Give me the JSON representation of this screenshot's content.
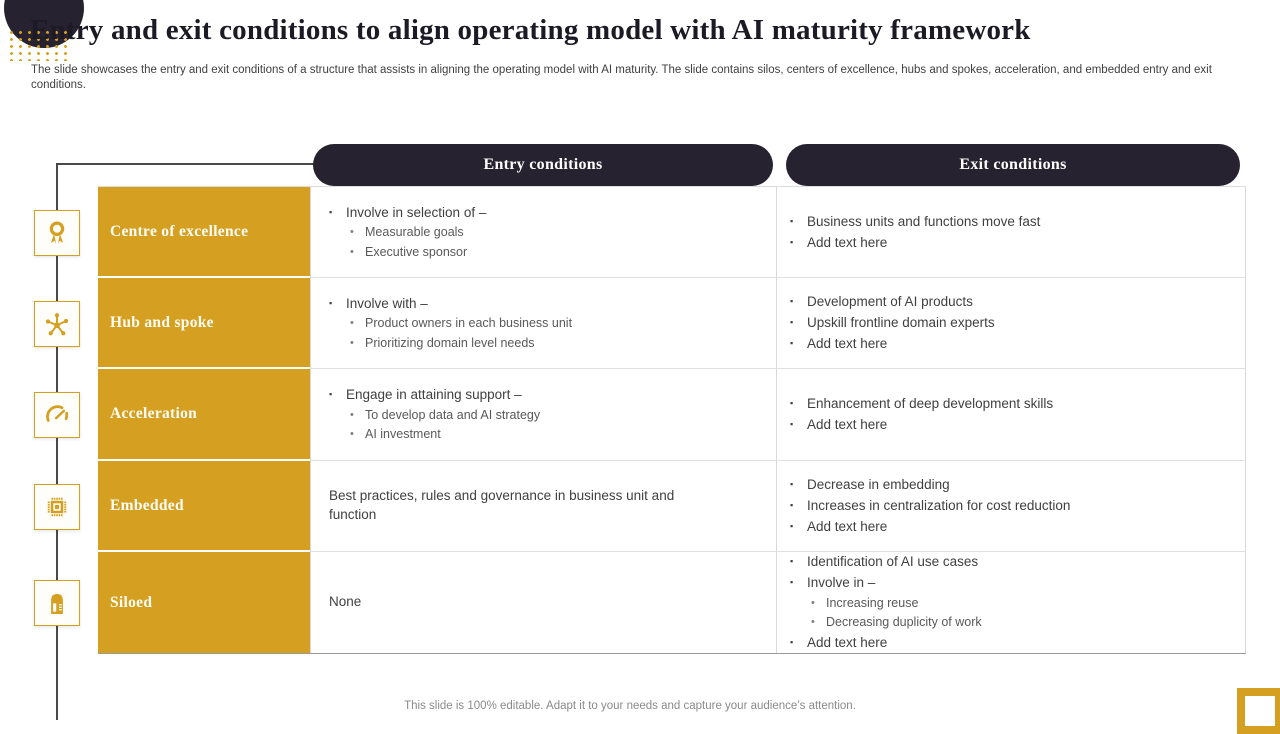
{
  "slide": {
    "title": "Entry and exit conditions to align operating model with AI maturity framework",
    "description": "The slide showcases the entry and exit conditions of a structure that assists in aligning the operating model with AI maturity. The slide contains silos, centers of excellence, hubs and spokes, acceleration, and embedded entry and exit conditions.",
    "footer": "This slide is 100% editable. Adapt it to your needs and capture your audience’s attention."
  },
  "table": {
    "columns": [
      {
        "id": "entry",
        "label": "Entry conditions"
      },
      {
        "id": "exit",
        "label": "Exit conditions"
      }
    ],
    "rows": [
      {
        "label": "Centre of excellence",
        "icon": "award-ribbon-icon",
        "entry": [
          {
            "type": "bullet",
            "text": "Involve in selection of –"
          },
          {
            "type": "sub",
            "text": "Measurable goals"
          },
          {
            "type": "sub",
            "text": "Executive sponsor"
          }
        ],
        "exit": [
          {
            "type": "bullet",
            "text": "Business units and functions move fast"
          },
          {
            "type": "bullet",
            "text": "Add text here"
          }
        ]
      },
      {
        "label": "Hub and spoke",
        "icon": "hub-spoke-icon",
        "entry": [
          {
            "type": "bullet",
            "text": "Involve with –"
          },
          {
            "type": "sub",
            "text": "Product owners in each business unit"
          },
          {
            "type": "sub",
            "text": "Prioritizing domain level needs"
          }
        ],
        "exit": [
          {
            "type": "bullet",
            "text": "Development of AI products"
          },
          {
            "type": "bullet",
            "text": "Upskill frontline domain experts"
          },
          {
            "type": "bullet",
            "text": "Add text here"
          }
        ]
      },
      {
        "label": "Acceleration",
        "icon": "speedometer-icon",
        "entry": [
          {
            "type": "bullet",
            "text": "Engage in attaining support –"
          },
          {
            "type": "sub",
            "text": "To develop data and AI strategy"
          },
          {
            "type": "sub",
            "text": "AI investment"
          }
        ],
        "exit": [
          {
            "type": "bullet",
            "text": "Enhancement of deep development skills"
          },
          {
            "type": "bullet",
            "text": "Add text here"
          }
        ]
      },
      {
        "label": "Embedded",
        "icon": "microchip-icon",
        "entry": [
          {
            "type": "plain",
            "text": "Best practices, rules and governance in business unit and function"
          }
        ],
        "exit": [
          {
            "type": "bullet",
            "text": "Decrease in embedding"
          },
          {
            "type": "bullet",
            "text": "Increases in centralization for cost reduction"
          },
          {
            "type": "bullet",
            "text": "Add text here"
          }
        ]
      },
      {
        "label": "Siloed",
        "icon": "silo-icon",
        "entry": [
          {
            "type": "plain",
            "text": "None"
          }
        ],
        "exit": [
          {
            "type": "bullet",
            "text": "Identification of AI use cases"
          },
          {
            "type": "bullet",
            "text": "Involve in –"
          },
          {
            "type": "sub",
            "text": "Increasing reuse"
          },
          {
            "type": "sub",
            "text": "Decreasing duplicity of work"
          },
          {
            "type": "bullet",
            "text": "Add text here"
          }
        ]
      }
    ]
  },
  "colors": {
    "gold": "#D5A021",
    "dark": "#27222F",
    "body_text": "#404040",
    "sub_text": "#595959",
    "footer_text": "#8A8A8A"
  }
}
